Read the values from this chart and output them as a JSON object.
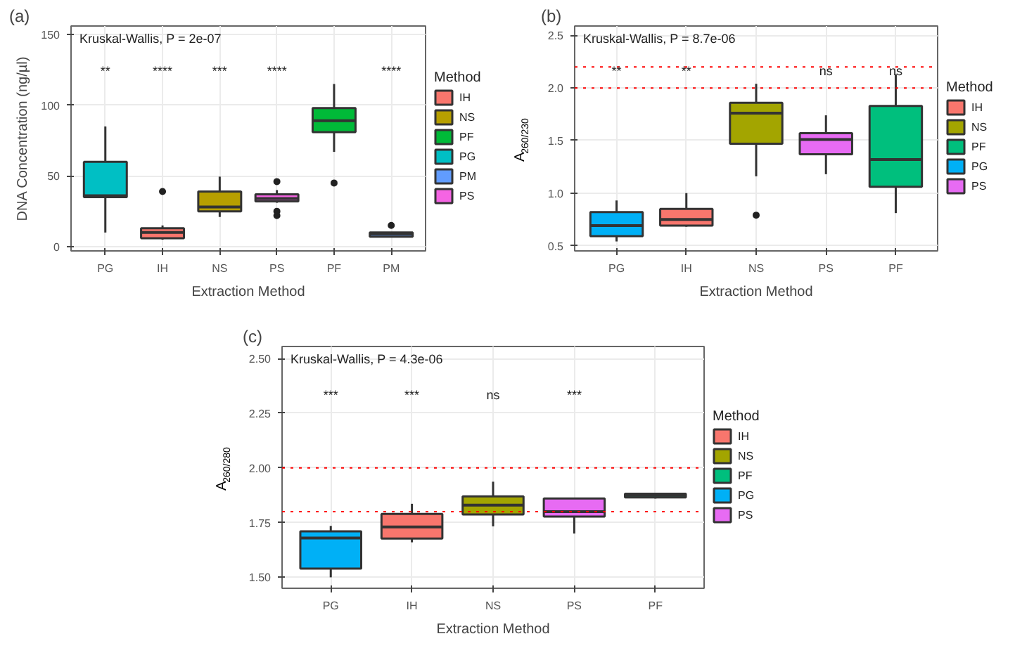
{
  "chart_data": [
    {
      "type": "box",
      "title": "(a)",
      "xlabel": "Extraction Method",
      "ylabel": "DNA Concentration (ng/µl)",
      "legend_title": "Method",
      "categories": [
        "PG",
        "IH",
        "NS",
        "PS",
        "PF",
        "PM"
      ],
      "series": [
        {
          "name": "IH",
          "color": "#f8766d",
          "x": [
            "IH"
          ],
          "value_labels": [
            "****"
          ],
          "boxes": [
            {
              "low": 5,
              "q1": 6,
              "median": 10,
              "q3": 13,
              "high": 15,
              "outliers": [
                39
              ]
            }
          ]
        },
        {
          "name": "NS",
          "color": "#b79f00",
          "x": [
            "NS"
          ],
          "value_labels": [
            "***"
          ],
          "boxes": [
            {
              "low": 21,
              "q1": 25,
              "median": 28,
              "q3": 39,
              "high": 49.5
            }
          ]
        },
        {
          "name": "PF",
          "color": "#00ba38",
          "x": [
            "PF"
          ],
          "value_labels": [
            null
          ],
          "boxes": [
            {
              "low": 67,
              "q1": 81,
              "median": 89,
              "q3": 98,
              "high": 115,
              "outliers": [
                45
              ]
            }
          ]
        },
        {
          "name": "PG",
          "color": "#00bfc4",
          "x": [
            "PG"
          ],
          "value_labels": [
            "**"
          ],
          "boxes": [
            {
              "low": 10,
              "q1": 35,
              "median": 36,
              "q3": 60,
              "high": 85
            }
          ]
        },
        {
          "name": "PM",
          "color": "#619cff",
          "x": [
            "PM"
          ],
          "value_labels": [
            "****"
          ],
          "boxes": [
            {
              "low": 6.5,
              "q1": 7,
              "median": 9,
              "q3": 10,
              "high": 10,
              "outliers": [
                15
              ]
            }
          ]
        },
        {
          "name": "PS",
          "color": "#f564e3",
          "x": [
            "PS"
          ],
          "value_labels": [
            "****"
          ],
          "boxes": [
            {
              "low": 31,
              "q1": 32,
              "median": 34,
              "q3": 37,
              "high": 40,
              "outliers": [
                46,
                25,
                22
              ]
            }
          ]
        }
      ],
      "annotations": [
        "Kruskal-Wallis, P = 2e-07"
      ],
      "ylim": [
        -3,
        156
      ],
      "yticks": [
        0,
        50,
        100,
        150
      ],
      "grid": true,
      "legend": "right"
    },
    {
      "type": "box",
      "title": "(b)",
      "xlabel": "Extraction Method",
      "ylabel": "A$_{260/230}$",
      "legend_title": "Method",
      "categories": [
        "PG",
        "IH",
        "NS",
        "PS",
        "PF"
      ],
      "series": [
        {
          "name": "IH",
          "color": "#f8766d",
          "x": [
            "IH"
          ],
          "value_labels": [
            "**"
          ],
          "boxes": [
            {
              "low": 0.68,
              "q1": 0.69,
              "median": 0.75,
              "q3": 0.85,
              "high": 1.0
            }
          ]
        },
        {
          "name": "NS",
          "color": "#a3a500",
          "x": [
            "NS"
          ],
          "value_labels": [
            null
          ],
          "boxes": [
            {
              "low": 1.16,
              "q1": 1.47,
              "median": 1.76,
              "q3": 1.86,
              "high": 2.04,
              "outliers": [
                0.79
              ]
            }
          ]
        },
        {
          "name": "PF",
          "color": "#00bf7d",
          "x": [
            "PF"
          ],
          "value_labels": [
            "ns"
          ],
          "boxes": [
            {
              "low": 0.81,
              "q1": 1.06,
              "median": 1.32,
              "q3": 1.83,
              "high": 2.13
            }
          ]
        },
        {
          "name": "PG",
          "color": "#00b0f6",
          "x": [
            "PG"
          ],
          "value_labels": [
            "**"
          ],
          "boxes": [
            {
              "low": 0.54,
              "q1": 0.59,
              "median": 0.69,
              "q3": 0.82,
              "high": 0.93
            }
          ]
        },
        {
          "name": "PS",
          "color": "#e76bf3",
          "x": [
            "PS"
          ],
          "value_labels": [
            "ns"
          ],
          "boxes": [
            {
              "low": 1.18,
              "q1": 1.37,
              "median": 1.51,
              "q3": 1.57,
              "high": 1.74
            }
          ]
        }
      ],
      "annotations": [
        "Kruskal-Wallis, P = 8.7e-06"
      ],
      "ref_lines": [
        {
          "axis": "y",
          "value": 2.0,
          "color": "#ff0000",
          "line_style": "dotted"
        },
        {
          "axis": "y",
          "value": 2.2,
          "color": "#ff0000",
          "line_style": "dotted"
        }
      ],
      "ylim": [
        0.45,
        2.59
      ],
      "yticks": [
        {
          "value": 0.5,
          "label": "0.5"
        },
        {
          "value": 1,
          "label": "1.0"
        },
        {
          "value": 1.5,
          "label": "1.5"
        },
        {
          "value": 2,
          "label": "2.0"
        },
        {
          "value": 2.5,
          "label": "2.5"
        }
      ],
      "grid": true,
      "legend": "right"
    },
    {
      "type": "box",
      "title": "(c)",
      "xlabel": "Extraction Method",
      "ylabel": "A$_{260/280}$",
      "legend_title": "Method",
      "categories": [
        "PG",
        "IH",
        "NS",
        "PS",
        "PF"
      ],
      "series": [
        {
          "name": "IH",
          "color": "#f8766d",
          "x": [
            "IH"
          ],
          "value_labels": [
            "***"
          ],
          "boxes": [
            {
              "low": 1.66,
              "q1": 1.677,
              "median": 1.73,
              "q3": 1.79,
              "high": 1.836
            }
          ]
        },
        {
          "name": "NS",
          "color": "#a3a500",
          "x": [
            "NS"
          ],
          "value_labels": [
            "ns"
          ],
          "boxes": [
            {
              "low": 1.733,
              "q1": 1.787,
              "median": 1.83,
              "q3": 1.87,
              "high": 1.937
            }
          ]
        },
        {
          "name": "PF",
          "color": "#00bf7d",
          "x": [
            "PF"
          ],
          "value_labels": [
            null
          ],
          "boxes": [
            {
              "low": 1.86,
              "q1": 1.865,
              "median": 1.875,
              "q3": 1.882,
              "high": 1.882
            }
          ]
        },
        {
          "name": "PG",
          "color": "#00b0f6",
          "x": [
            "PG"
          ],
          "value_labels": [
            "***"
          ],
          "boxes": [
            {
              "low": 1.5,
              "q1": 1.54,
              "median": 1.68,
              "q3": 1.71,
              "high": 1.735
            }
          ]
        },
        {
          "name": "PS",
          "color": "#e76bf3",
          "x": [
            "PS"
          ],
          "value_labels": [
            "***"
          ],
          "boxes": [
            {
              "low": 1.7,
              "q1": 1.778,
              "median": 1.8,
              "q3": 1.86,
              "high": 1.86
            }
          ]
        }
      ],
      "annotations": [
        "Kruskal-Wallis, P = 4.3e-06"
      ],
      "ref_lines": [
        {
          "axis": "y",
          "value": 2.0,
          "color": "#ff0000",
          "line_style": "dotted"
        },
        {
          "axis": "y",
          "value": 1.8,
          "color": "#ff0000",
          "line_style": "dotted"
        }
      ],
      "ylim": [
        1.45,
        2.555
      ],
      "yticks": [
        {
          "value": 1.5,
          "label": "1.50"
        },
        {
          "value": 1.75,
          "label": "1.75"
        },
        {
          "value": 2,
          "label": "2.00"
        },
        {
          "value": 2.25,
          "label": "2.25"
        },
        {
          "value": 2.5,
          "label": "2.50"
        }
      ],
      "grid": true,
      "legend": "right"
    }
  ]
}
